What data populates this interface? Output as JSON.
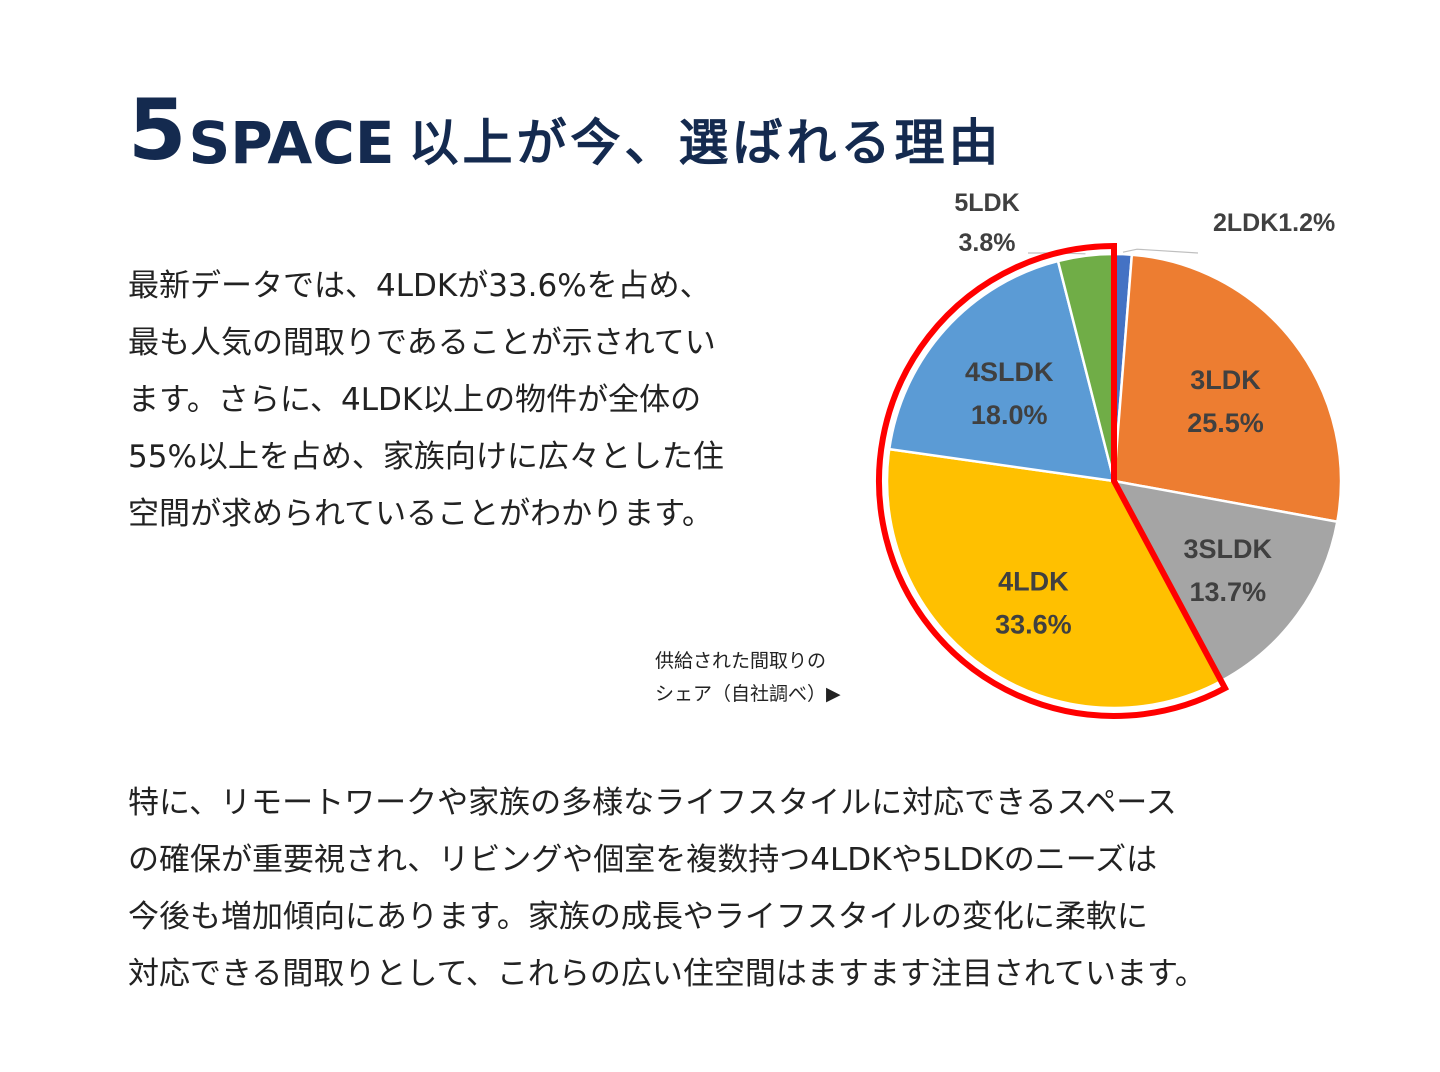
{
  "heading": {
    "number": "5",
    "brand": "SPACE",
    "rest": "以上が今、選ばれる理由"
  },
  "intro_lines": [
    "最新データでは、4LDKが33.6%を占め、",
    "最も人気の間取りであることが示されてい",
    "ます。さらに、4LDK以上の物件が全体の",
    "55%以上を占め、家族向けに広々とした住",
    "空間が求められていることがわかります。"
  ],
  "source_note": {
    "line1": "供給された間取りの",
    "line2": "シェア（自社調べ）▶"
  },
  "detail_lines": [
    "特に、リモートワークや家族の多様なライフスタイルに対応できるスペース",
    "の確保が重要視され、リビングや個室を複数持つ4LDKや5LDKのニーズは",
    "今後も増加傾向にあります。家族の成長やライフスタイルの変化に柔軟に",
    "対応できる間取りとして、これらの広い住空間はますます注目されています。"
  ],
  "chart_data": {
    "type": "pie",
    "slices": [
      {
        "label": "2LDK",
        "value": 1.2,
        "display": "2LDK1.2%",
        "color": "#4472c4",
        "label_position": "outside"
      },
      {
        "label": "3LDK",
        "value": 25.5,
        "line1": "3LDK",
        "line2": "25.5%",
        "color": "#ed7d31",
        "label_position": "inside"
      },
      {
        "label": "3SLDK",
        "value": 13.7,
        "line1": "3SLDK",
        "line2": "13.7%",
        "color": "#a5a5a5",
        "label_position": "inside"
      },
      {
        "label": "4LDK",
        "value": 33.6,
        "line1": "4LDK",
        "line2": "33.6%",
        "color": "#ffc000",
        "label_position": "inside"
      },
      {
        "label": "4SLDK",
        "value": 18.0,
        "line1": "4SLDK",
        "line2": "18.0%",
        "color": "#5b9bd5",
        "label_position": "inside"
      },
      {
        "label": "5LDK",
        "value": 3.8,
        "line1": "5LDK",
        "line2": "3.8%",
        "color": "#70ad47",
        "label_position": "outside"
      }
    ],
    "start": "top",
    "direction": "clockwise",
    "highlight": {
      "slices": [
        "4LDK",
        "4SLDK",
        "5LDK"
      ],
      "outline_color": "#ff0000"
    }
  }
}
